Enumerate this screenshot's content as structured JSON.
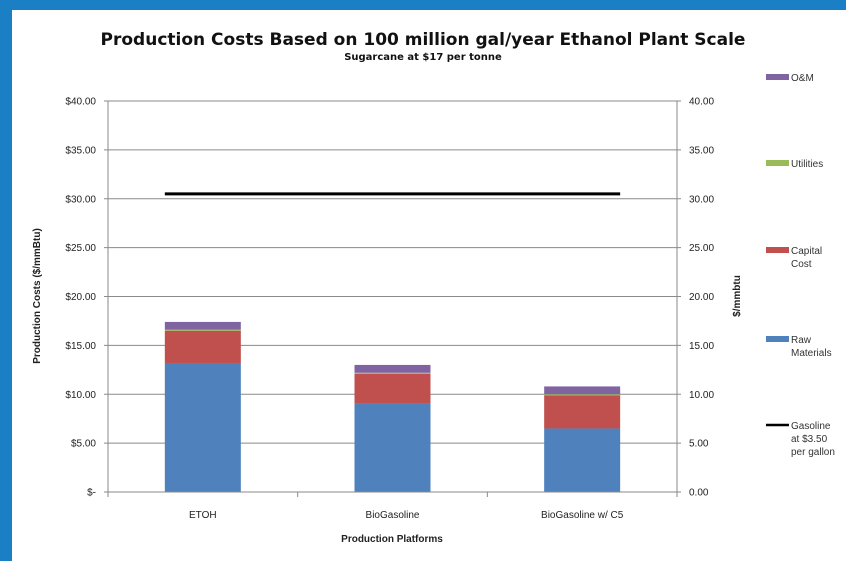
{
  "chart_data": {
    "type": "bar",
    "stacked": true,
    "title": "Production Costs Based on 100 million gal/year Ethanol Plant Scale",
    "subtitle": "Sugarcane at $17 per tonne",
    "xlabel": "Production Platforms",
    "ylabel": "Production Costs ($/mmBtu)",
    "y2label": "$/mmbtu",
    "ylim": [
      0,
      40
    ],
    "categories": [
      "ETOH",
      "BioGasoline",
      "BioGasoline w/ C5"
    ],
    "y_ticks": [
      "$-",
      "$5.00",
      "$10.00",
      "$15.00",
      "$20.00",
      "$25.00",
      "$30.00",
      "$35.00",
      "$40.00"
    ],
    "y2_ticks": [
      "0.00",
      "5.00",
      "10.00",
      "15.00",
      "20.00",
      "25.00",
      "30.00",
      "35.00",
      "40.00"
    ],
    "series": [
      {
        "name": "Raw Materials",
        "color": "#4f81bd",
        "values": [
          13.2,
          9.1,
          6.5
        ]
      },
      {
        "name": "Capital Cost",
        "color": "#c0504d",
        "values": [
          3.3,
          3.0,
          3.4
        ]
      },
      {
        "name": "Utilities",
        "color": "#9bbb59",
        "values": [
          0.1,
          0.1,
          0.1
        ]
      },
      {
        "name": "O&M",
        "color": "#8064a2",
        "values": [
          0.8,
          0.8,
          0.8
        ]
      }
    ],
    "reference_line": {
      "name": "Gasoline at $3.50 per gallon",
      "value": 30.5,
      "color": "#000000"
    },
    "legend": [
      {
        "label": "O&M",
        "color": "#8064a2",
        "marker": "patch"
      },
      {
        "label": "Utilities",
        "color": "#9bbb59",
        "marker": "patch"
      },
      {
        "label": "Capital Cost",
        "color": "#c0504d",
        "marker": "patch"
      },
      {
        "label": "Raw Materials",
        "color": "#4f81bd",
        "marker": "patch"
      },
      {
        "label": "Gasoline at $3.50 per gallon",
        "color": "#000000",
        "marker": "line"
      }
    ],
    "legend_position": "right",
    "grid": true
  }
}
